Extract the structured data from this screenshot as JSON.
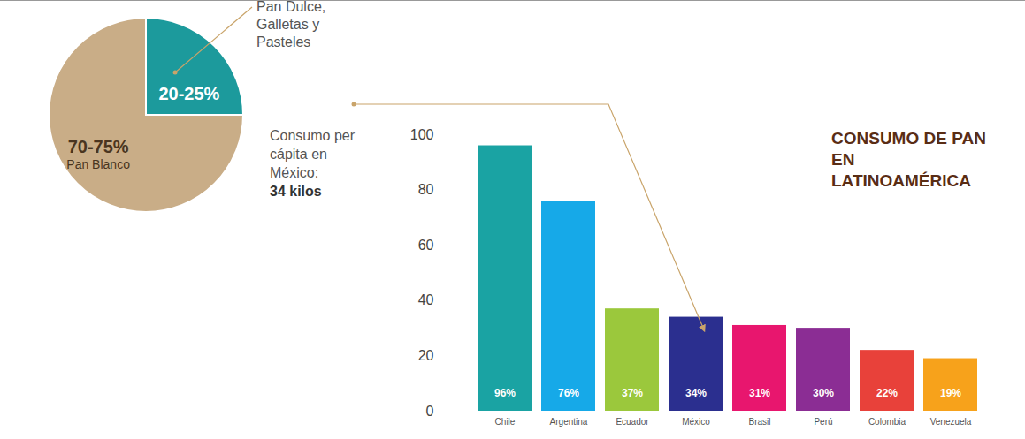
{
  "chart_data": [
    {
      "type": "pie",
      "categories": [
        "Pan Dulce, Galletas y Pasteles",
        "Pan Blanco"
      ],
      "values": [
        25,
        75
      ],
      "value_labels": [
        "20-25%",
        "70-75%"
      ],
      "colors": [
        "#1c9a9c",
        "#c9ad87"
      ],
      "data_labels": true
    },
    {
      "type": "bar",
      "title": "CONSUMO DE PAN EN LATINOAMÉRICA",
      "categories": [
        "Chile",
        "Argentina",
        "Ecuador",
        "México",
        "Brasil",
        "Perú",
        "Colombia",
        "Venezuela"
      ],
      "values": [
        96,
        76,
        37,
        34,
        31,
        30,
        22,
        19
      ],
      "value_labels": [
        "96%",
        "76%",
        "37%",
        "34%",
        "31%",
        "30%",
        "22%",
        "19%"
      ],
      "colors": [
        "#1aa3a3",
        "#16a9e8",
        "#9bc83c",
        "#2b2f8f",
        "#e8166e",
        "#8b2d94",
        "#e8413a",
        "#f7a21b"
      ],
      "ylim": [
        0,
        100
      ],
      "yticks": [
        0,
        20,
        40,
        60,
        80,
        100
      ],
      "grid": false,
      "data_labels": true,
      "annotation": {
        "text": "Consumo per cápita en México:",
        "value": "34 kilos",
        "category": "México"
      }
    }
  ]
}
